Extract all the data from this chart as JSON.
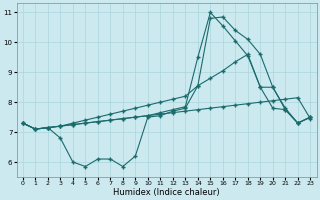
{
  "xlabel": "Humidex (Indice chaleur)",
  "background_color": "#cce9f0",
  "grid_color": "#aad4dc",
  "line_color": "#1a6b6b",
  "xlim": [
    -0.5,
    23.5
  ],
  "ylim": [
    5.5,
    11.3
  ],
  "xticks": [
    0,
    1,
    2,
    3,
    4,
    5,
    6,
    7,
    8,
    9,
    10,
    11,
    12,
    13,
    14,
    15,
    16,
    17,
    18,
    19,
    20,
    21,
    22,
    23
  ],
  "yticks": [
    6,
    7,
    8,
    9,
    10,
    11
  ],
  "line_bottom_x": [
    0,
    1,
    2,
    3,
    4,
    5,
    6,
    7,
    8,
    9,
    10,
    11,
    12,
    13,
    14,
    15,
    16,
    17,
    18,
    19,
    20,
    21,
    22,
    23
  ],
  "line_bottom_y": [
    7.3,
    7.1,
    7.15,
    7.2,
    7.25,
    7.3,
    7.35,
    7.4,
    7.45,
    7.5,
    7.55,
    7.6,
    7.65,
    7.7,
    7.75,
    7.8,
    7.85,
    7.9,
    7.95,
    8.0,
    8.05,
    8.1,
    8.15,
    7.45
  ],
  "line_mid_x": [
    0,
    1,
    2,
    3,
    4,
    5,
    6,
    7,
    8,
    9,
    10,
    11,
    12,
    13,
    14,
    15,
    16,
    17,
    18,
    19,
    20,
    21,
    22,
    23
  ],
  "line_mid_y": [
    7.3,
    7.1,
    7.15,
    7.2,
    7.3,
    7.4,
    7.5,
    7.6,
    7.7,
    7.8,
    7.9,
    8.0,
    8.1,
    8.2,
    8.55,
    8.8,
    9.05,
    9.35,
    9.6,
    8.5,
    8.5,
    7.8,
    7.3,
    7.5
  ],
  "line_dip_x": [
    0,
    1,
    2,
    3,
    4,
    5,
    6,
    7,
    8,
    9,
    10,
    11,
    12,
    13,
    14,
    15,
    16,
    17,
    18,
    19,
    20,
    21,
    22,
    23
  ],
  "line_dip_y": [
    7.3,
    7.1,
    7.15,
    6.8,
    6.0,
    5.85,
    6.1,
    6.1,
    5.85,
    6.2,
    7.5,
    7.55,
    7.7,
    7.8,
    8.55,
    10.8,
    10.85,
    10.4,
    10.1,
    9.6,
    8.5,
    7.75,
    7.3,
    7.5
  ],
  "line_top_x": [
    0,
    1,
    2,
    3,
    4,
    5,
    6,
    7,
    8,
    9,
    10,
    11,
    12,
    13,
    14,
    15,
    16,
    17,
    18,
    19,
    20,
    21,
    22,
    23
  ],
  "line_top_y": [
    7.3,
    7.1,
    7.15,
    7.2,
    7.25,
    7.3,
    7.35,
    7.4,
    7.45,
    7.5,
    7.55,
    7.65,
    7.75,
    7.85,
    9.5,
    11.0,
    10.55,
    10.05,
    9.55,
    8.5,
    7.8,
    7.75,
    7.3,
    7.5
  ]
}
